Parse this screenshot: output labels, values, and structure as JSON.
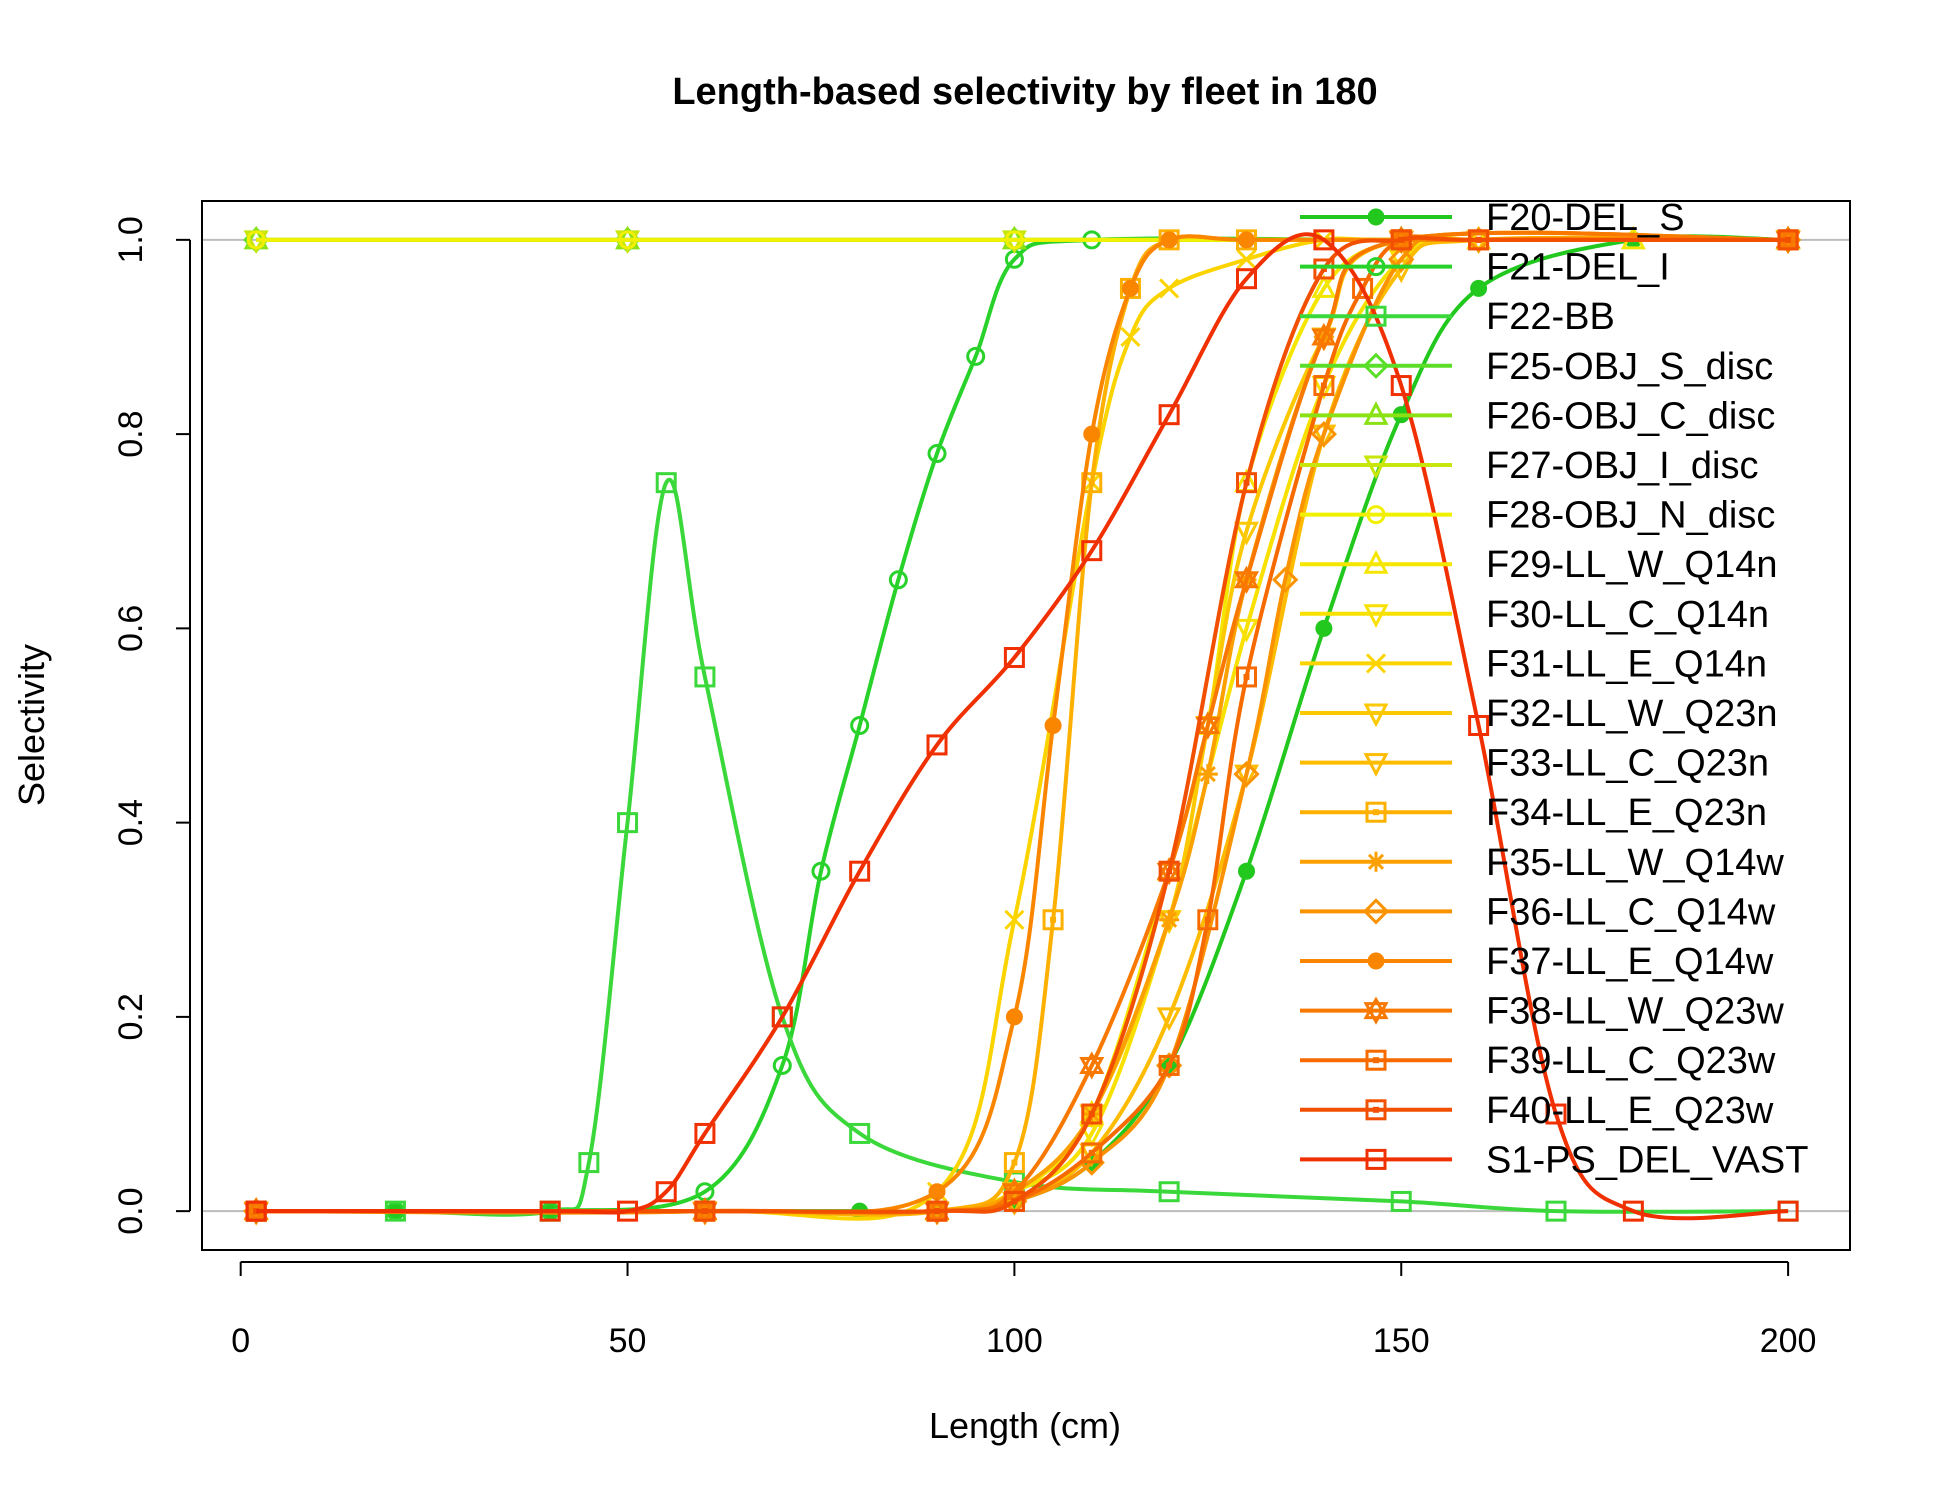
{
  "chart_data": {
    "type": "line",
    "title": "Length-based selectivity by fleet in 180",
    "xlabel": "Length (cm)",
    "ylabel": "Selectivity",
    "xlim": [
      -5,
      208
    ],
    "ylim": [
      -0.04,
      1.04
    ],
    "x_ticks": [
      0,
      50,
      100,
      150,
      200
    ],
    "y_ticks": [
      0.0,
      0.2,
      0.4,
      0.6,
      0.8,
      1.0
    ],
    "x_tick_labels": [
      "0",
      "50",
      "100",
      "150",
      "200"
    ],
    "y_tick_labels": [
      "0.0",
      "0.2",
      "0.4",
      "0.6",
      "0.8",
      "1.0"
    ],
    "reference_lines": [
      0,
      1
    ],
    "legend_position": "top-right",
    "series": [
      {
        "name": "F20-DEL_S",
        "color": "#22c81e",
        "marker": "dot",
        "x": [
          2,
          20,
          40,
          60,
          80,
          90,
          100,
          110,
          120,
          130,
          140,
          150,
          160,
          180,
          200
        ],
        "y": [
          0,
          0,
          0,
          0,
          0,
          0,
          0.01,
          0.05,
          0.15,
          0.35,
          0.6,
          0.82,
          0.95,
          1,
          1
        ]
      },
      {
        "name": "F21-DEL_I",
        "color": "#28d22a",
        "marker": "circle",
        "x": [
          2,
          20,
          40,
          60,
          70,
          75,
          80,
          85,
          90,
          95,
          100,
          110,
          150,
          200
        ],
        "y": [
          0,
          0,
          0,
          0.02,
          0.15,
          0.35,
          0.5,
          0.65,
          0.78,
          0.88,
          0.98,
          1,
          1,
          1
        ]
      },
      {
        "name": "F22-BB",
        "color": "#3ad83a",
        "marker": "square",
        "x": [
          2,
          20,
          40,
          45,
          50,
          55,
          60,
          70,
          80,
          100,
          120,
          150,
          170,
          200
        ],
        "y": [
          0,
          0,
          0,
          0.05,
          0.4,
          0.75,
          0.55,
          0.2,
          0.08,
          0.03,
          0.02,
          0.01,
          0,
          0
        ]
      },
      {
        "name": "F25-OBJ_S_disc",
        "color": "#5ade28",
        "marker": "diamond",
        "x": [
          2,
          50,
          100,
          150,
          200
        ],
        "y": [
          1,
          1,
          1,
          1,
          1
        ]
      },
      {
        "name": "F26-OBJ_C_disc",
        "color": "#8ae214",
        "marker": "triangle",
        "x": [
          2,
          50,
          100,
          150,
          200
        ],
        "y": [
          1,
          1,
          1,
          1,
          1
        ]
      },
      {
        "name": "F27-OBJ_I_disc",
        "color": "#c8e60a",
        "marker": "triangle-down",
        "x": [
          2,
          50,
          100,
          150,
          200
        ],
        "y": [
          1,
          1,
          1,
          1,
          1
        ]
      },
      {
        "name": "F28-OBJ_N_disc",
        "color": "#f0f000",
        "marker": "circle",
        "x": [
          2,
          50,
          100,
          150,
          200
        ],
        "y": [
          1,
          1,
          1,
          1,
          1
        ]
      },
      {
        "name": "F29-LL_W_Q14n",
        "color": "#f5e600",
        "marker": "triangle",
        "x": [
          2,
          60,
          90,
          100,
          110,
          120,
          125,
          130,
          140,
          150,
          160,
          180,
          200
        ],
        "y": [
          0,
          0,
          0,
          0.02,
          0.1,
          0.35,
          0.5,
          0.75,
          0.95,
          1,
          1,
          1,
          1
        ]
      },
      {
        "name": "F30-LL_C_Q14n",
        "color": "#f8e000",
        "marker": "triangle-down",
        "x": [
          2,
          60,
          90,
          100,
          110,
          120,
          130,
          140,
          150,
          160,
          200
        ],
        "y": [
          0,
          0,
          0,
          0.02,
          0.08,
          0.3,
          0.6,
          0.85,
          0.98,
          1,
          1
        ]
      },
      {
        "name": "F31-LL_E_Q14n",
        "color": "#fbd400",
        "marker": "cross",
        "x": [
          2,
          60,
          90,
          100,
          110,
          115,
          120,
          130,
          140,
          150,
          200
        ],
        "y": [
          0,
          0,
          0.02,
          0.3,
          0.75,
          0.9,
          0.95,
          0.98,
          1,
          1,
          1
        ]
      },
      {
        "name": "F32-LL_W_Q23n",
        "color": "#fcc800",
        "marker": "triangle-down",
        "x": [
          2,
          60,
          90,
          100,
          110,
          120,
          125,
          130,
          140,
          150,
          200
        ],
        "y": [
          0,
          0,
          0,
          0.02,
          0.1,
          0.3,
          0.5,
          0.7,
          0.9,
          1,
          1
        ]
      },
      {
        "name": "F33-LL_C_Q23n",
        "color": "#fdbc00",
        "marker": "triangle-down",
        "x": [
          2,
          60,
          90,
          100,
          110,
          120,
          130,
          140,
          150,
          160,
          200
        ],
        "y": [
          0,
          0,
          0,
          0.01,
          0.06,
          0.2,
          0.45,
          0.8,
          0.97,
          1,
          1
        ]
      },
      {
        "name": "F34-LL_E_Q23n",
        "color": "#fdb000",
        "marker": "boxed-square",
        "x": [
          2,
          60,
          90,
          100,
          105,
          110,
          115,
          120,
          130,
          150,
          200
        ],
        "y": [
          0,
          0,
          0,
          0.05,
          0.3,
          0.75,
          0.95,
          1,
          1,
          1,
          1
        ]
      },
      {
        "name": "F35-LL_W_Q14w",
        "color": "#fca000",
        "marker": "asterisk",
        "x": [
          2,
          60,
          90,
          100,
          110,
          120,
          125,
          130,
          140,
          150,
          200
        ],
        "y": [
          0,
          0,
          0,
          0.02,
          0.1,
          0.3,
          0.45,
          0.65,
          0.9,
          1,
          1
        ]
      },
      {
        "name": "F36-LL_C_Q14w",
        "color": "#fb9200",
        "marker": "diamond",
        "x": [
          2,
          60,
          90,
          100,
          110,
          120,
          130,
          135,
          140,
          150,
          160,
          200
        ],
        "y": [
          0,
          0,
          0,
          0.01,
          0.05,
          0.15,
          0.45,
          0.65,
          0.8,
          0.98,
          1,
          1
        ]
      },
      {
        "name": "F37-LL_E_Q14w",
        "color": "#fa8600",
        "marker": "dot",
        "x": [
          2,
          60,
          90,
          100,
          105,
          110,
          115,
          120,
          130,
          150,
          200
        ],
        "y": [
          0,
          0,
          0.02,
          0.2,
          0.5,
          0.8,
          0.95,
          1,
          1,
          1,
          1
        ]
      },
      {
        "name": "F38-LL_W_Q23w",
        "color": "#f87800",
        "marker": "star",
        "x": [
          2,
          60,
          90,
          100,
          110,
          120,
          125,
          130,
          140,
          150,
          200
        ],
        "y": [
          0,
          0,
          0,
          0.02,
          0.15,
          0.35,
          0.5,
          0.65,
          0.9,
          1,
          1
        ]
      },
      {
        "name": "F39-LL_C_Q23w",
        "color": "#f66a00",
        "marker": "boxed-square",
        "x": [
          2,
          60,
          90,
          100,
          110,
          120,
          125,
          130,
          140,
          145,
          150,
          160,
          200
        ],
        "y": [
          0,
          0,
          0,
          0.01,
          0.06,
          0.15,
          0.3,
          0.55,
          0.85,
          0.95,
          1,
          1,
          1
        ]
      },
      {
        "name": "F40-LL_E_Q23w",
        "color": "#f25000",
        "marker": "boxed-square",
        "x": [
          2,
          60,
          90,
          100,
          110,
          120,
          130,
          140,
          150,
          160,
          200
        ],
        "y": [
          0,
          0,
          0,
          0.01,
          0.1,
          0.35,
          0.75,
          0.97,
          1,
          1,
          1
        ]
      },
      {
        "name": "S1-PS_DEL_VAST",
        "color": "#f03000",
        "marker": "square",
        "x": [
          2,
          40,
          50,
          55,
          60,
          70,
          80,
          90,
          100,
          110,
          120,
          130,
          140,
          150,
          160,
          170,
          180,
          200
        ],
        "y": [
          0,
          0,
          0,
          0.02,
          0.08,
          0.2,
          0.35,
          0.48,
          0.57,
          0.68,
          0.82,
          0.96,
          1,
          0.85,
          0.5,
          0.1,
          0,
          0
        ]
      }
    ]
  }
}
